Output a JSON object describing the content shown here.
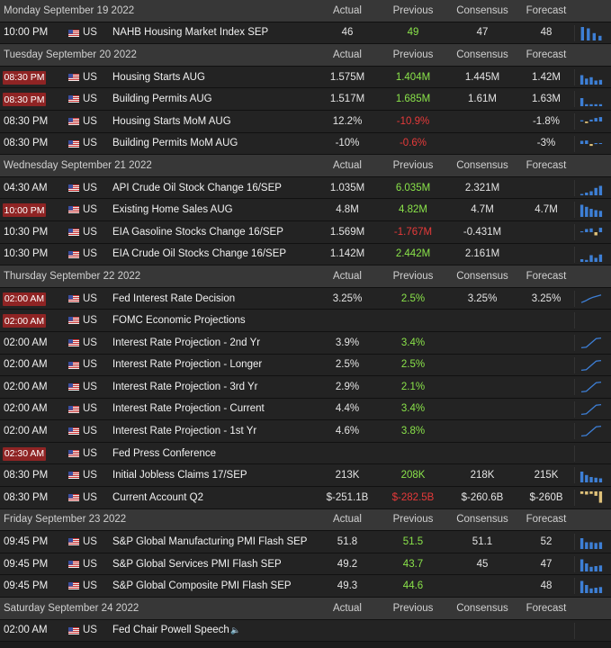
{
  "columns": {
    "actual": "Actual",
    "previous": "Previous",
    "consensus": "Consensus",
    "forecast": "Forecast"
  },
  "days": [
    {
      "date": "Monday September 19 2022",
      "events": [
        {
          "time": "10:00 PM",
          "highlight": false,
          "country": "US",
          "name": "NAHB Housing Market Index SEP",
          "actual": "46",
          "previous": "49",
          "prev_color": "green",
          "consensus": "47",
          "forecast": "48",
          "chart": "bars",
          "chart_values": [
            1.0,
            0.9,
            0.55,
            0.35
          ]
        }
      ]
    },
    {
      "date": "Tuesday September 20 2022",
      "events": [
        {
          "time": "08:30 PM",
          "highlight": true,
          "country": "US",
          "name": "Housing Starts AUG",
          "actual": "1.575M",
          "previous": "1.404M",
          "prev_color": "green",
          "consensus": "1.445M",
          "forecast": "1.42M",
          "chart": "bars",
          "chart_values": [
            0.7,
            0.45,
            0.55,
            0.3,
            0.35
          ]
        },
        {
          "time": "08:30 PM",
          "highlight": true,
          "country": "US",
          "name": "Building Permits AUG",
          "actual": "1.517M",
          "previous": "1.685M",
          "prev_color": "green",
          "consensus": "1.61M",
          "forecast": "1.63M",
          "chart": "bars",
          "chart_values": [
            0.6,
            0.15,
            0.15,
            0.15,
            0.15
          ]
        },
        {
          "time": "08:30 PM",
          "highlight": false,
          "country": "US",
          "name": "Housing Starts MoM AUG",
          "actual": "12.2%",
          "previous": "-10.9%",
          "prev_color": "red",
          "consensus": "",
          "forecast": "-1.8%",
          "chart": "bars",
          "chart_values": [
            0.2,
            -0.25,
            0.3,
            0.55,
            0.7
          ]
        },
        {
          "time": "08:30 PM",
          "highlight": false,
          "country": "US",
          "name": "Building Permits MoM AUG",
          "actual": "-10%",
          "previous": "-0.6%",
          "prev_color": "red",
          "consensus": "",
          "forecast": "-3%",
          "chart": "bars",
          "chart_values": [
            0.5,
            0.55,
            -0.3,
            0.15,
            0.1
          ]
        }
      ]
    },
    {
      "date": "Wednesday September 21 2022",
      "events": [
        {
          "time": "04:30 AM",
          "highlight": false,
          "country": "US",
          "name": "API Crude Oil Stock Change 16/SEP",
          "actual": "1.035M",
          "previous": "6.035M",
          "prev_color": "green",
          "consensus": "2.321M",
          "forecast": "",
          "chart": "bars",
          "chart_values": [
            0.1,
            0.2,
            0.3,
            0.55,
            0.7
          ]
        },
        {
          "time": "10:00 PM",
          "highlight": true,
          "country": "US",
          "name": "Existing Home Sales AUG",
          "actual": "4.8M",
          "previous": "4.82M",
          "prev_color": "green",
          "consensus": "4.7M",
          "forecast": "4.7M",
          "chart": "bars",
          "chart_values": [
            0.9,
            0.75,
            0.6,
            0.5,
            0.45
          ]
        },
        {
          "time": "10:30 PM",
          "highlight": false,
          "country": "US",
          "name": "EIA Gasoline Stocks Change 16/SEP",
          "actual": "1.569M",
          "previous": "-1.767M",
          "prev_color": "red",
          "consensus": "-0.431M",
          "forecast": "",
          "chart": "bars",
          "chart_values": [
            0.15,
            0.5,
            0.6,
            -0.5,
            0.7
          ]
        },
        {
          "time": "10:30 PM",
          "highlight": false,
          "country": "US",
          "name": "EIA Crude Oil Stocks Change 16/SEP",
          "actual": "1.142M",
          "previous": "2.442M",
          "prev_color": "green",
          "consensus": "2.161M",
          "forecast": "",
          "chart": "bars",
          "chart_values": [
            0.2,
            0.15,
            0.5,
            0.3,
            0.55
          ]
        }
      ]
    },
    {
      "date": "Thursday September 22 2022",
      "events": [
        {
          "time": "02:00 AM",
          "highlight": true,
          "country": "US",
          "name": "Fed Interest Rate Decision",
          "actual": "3.25%",
          "previous": "2.5%",
          "prev_color": "green",
          "consensus": "3.25%",
          "forecast": "3.25%",
          "chart": "line",
          "chart_values": [
            0.15,
            0.3,
            0.5,
            0.65,
            0.75,
            0.85
          ]
        },
        {
          "time": "02:00 AM",
          "highlight": true,
          "country": "US",
          "name": "FOMC Economic Projections",
          "actual": "",
          "previous": "",
          "prev_color": "green",
          "consensus": "",
          "forecast": "",
          "chart": "",
          "chart_values": []
        },
        {
          "time": "02:00 AM",
          "highlight": false,
          "country": "US",
          "name": "Interest Rate Projection - 2nd Yr",
          "actual": "3.9%",
          "previous": "3.4%",
          "prev_color": "green",
          "consensus": "",
          "forecast": "",
          "chart": "line",
          "chart_values": [
            0.05,
            0.1,
            0.5,
            0.9,
            0.95
          ]
        },
        {
          "time": "02:00 AM",
          "highlight": false,
          "country": "US",
          "name": "Interest Rate Projection - Longer",
          "actual": "2.5%",
          "previous": "2.5%",
          "prev_color": "green",
          "consensus": "",
          "forecast": "",
          "chart": "line",
          "chart_values": [
            0.05,
            0.1,
            0.5,
            0.9,
            0.95
          ]
        },
        {
          "time": "02:00 AM",
          "highlight": false,
          "country": "US",
          "name": "Interest Rate Projection - 3rd Yr",
          "actual": "2.9%",
          "previous": "2.1%",
          "prev_color": "green",
          "consensus": "",
          "forecast": "",
          "chart": "line",
          "chart_values": [
            0.05,
            0.1,
            0.5,
            0.9,
            0.95
          ]
        },
        {
          "time": "02:00 AM",
          "highlight": false,
          "country": "US",
          "name": "Interest Rate Projection - Current",
          "actual": "4.4%",
          "previous": "3.4%",
          "prev_color": "green",
          "consensus": "",
          "forecast": "",
          "chart": "line",
          "chart_values": [
            0.05,
            0.1,
            0.5,
            0.9,
            0.95
          ]
        },
        {
          "time": "02:00 AM",
          "highlight": false,
          "country": "US",
          "name": "Interest Rate Projection - 1st Yr",
          "actual": "4.6%",
          "previous": "3.8%",
          "prev_color": "green",
          "consensus": "",
          "forecast": "",
          "chart": "line",
          "chart_values": [
            0.05,
            0.1,
            0.5,
            0.9,
            0.95
          ]
        },
        {
          "time": "02:30 AM",
          "highlight": true,
          "country": "US",
          "name": "Fed Press Conference",
          "actual": "",
          "previous": "",
          "prev_color": "green",
          "consensus": "",
          "forecast": "",
          "chart": "",
          "chart_values": []
        },
        {
          "time": "08:30 PM",
          "highlight": false,
          "country": "US",
          "name": "Initial Jobless Claims 17/SEP",
          "actual": "213K",
          "previous": "208K",
          "prev_color": "green",
          "consensus": "218K",
          "forecast": "215K",
          "chart": "bars",
          "chart_values": [
            0.8,
            0.55,
            0.4,
            0.35,
            0.3
          ]
        },
        {
          "time": "08:30 PM",
          "highlight": false,
          "country": "US",
          "name": "Current Account Q2",
          "actual": "$-251.1B",
          "previous": "$-282.5B",
          "prev_color": "red",
          "consensus": "$-260.6B",
          "forecast": "$-260B",
          "chart": "bars",
          "chart_values": [
            -0.2,
            -0.25,
            -0.2,
            -0.35,
            -0.9
          ]
        }
      ]
    },
    {
      "date": "Friday September 23 2022",
      "events": [
        {
          "time": "09:45 PM",
          "highlight": false,
          "country": "US",
          "name": "S&P Global Manufacturing PMI Flash SEP",
          "actual": "51.8",
          "previous": "51.5",
          "prev_color": "green",
          "consensus": "51.1",
          "forecast": "52",
          "chart": "bars",
          "chart_values": [
            0.8,
            0.5,
            0.5,
            0.45,
            0.5
          ]
        },
        {
          "time": "09:45 PM",
          "highlight": false,
          "country": "US",
          "name": "S&P Global Services PMI Flash SEP",
          "actual": "49.2",
          "previous": "43.7",
          "prev_color": "green",
          "consensus": "45",
          "forecast": "47",
          "chart": "bars",
          "chart_values": [
            0.9,
            0.6,
            0.35,
            0.4,
            0.45
          ]
        },
        {
          "time": "09:45 PM",
          "highlight": false,
          "country": "US",
          "name": "S&P Global Composite PMI Flash SEP",
          "actual": "49.3",
          "previous": "44.6",
          "prev_color": "green",
          "consensus": "",
          "forecast": "48",
          "chart": "bars",
          "chart_values": [
            0.9,
            0.6,
            0.35,
            0.4,
            0.45
          ]
        }
      ]
    },
    {
      "date": "Saturday September 24 2022",
      "events": [
        {
          "time": "02:00 AM",
          "highlight": false,
          "country": "US",
          "name": "Fed Chair Powell Speech",
          "speaker_icon": true,
          "actual": "",
          "previous": "",
          "prev_color": "green",
          "consensus": "",
          "forecast": "",
          "chart": "",
          "chart_values": []
        }
      ]
    }
  ],
  "colors": {
    "bar": "#3d7fd6",
    "neg_bar": "#e0c27a",
    "badge": "#8f2424",
    "green": "#8ae34a",
    "red": "#e63a3a"
  },
  "icons": {
    "flag": "us-flag-icon",
    "speaker": "speaker-icon"
  }
}
